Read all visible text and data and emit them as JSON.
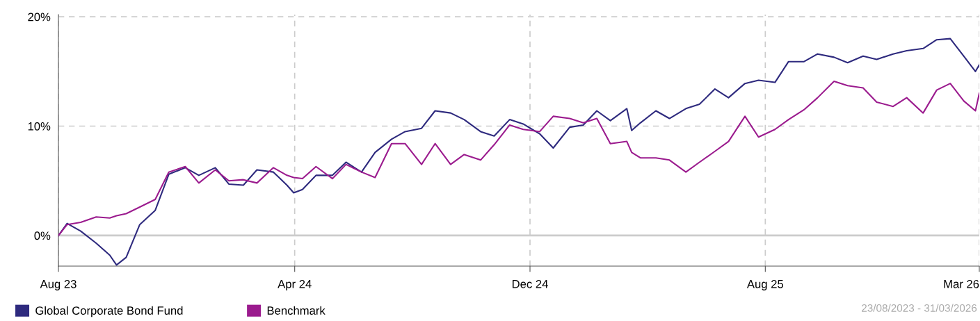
{
  "chart_data": {
    "type": "line",
    "x": [
      "2023-08-23",
      "2023-09-01",
      "2023-09-15",
      "2023-10-01",
      "2023-10-15",
      "2023-10-22",
      "2023-11-01",
      "2023-11-15",
      "2023-12-01",
      "2023-12-15",
      "2024-01-01",
      "2024-01-15",
      "2024-02-01",
      "2024-02-15",
      "2024-03-01",
      "2024-03-15",
      "2024-04-01",
      "2024-04-15",
      "2024-04-22",
      "2024-05-01",
      "2024-05-15",
      "2024-06-01",
      "2024-06-15",
      "2024-07-01",
      "2024-07-15",
      "2024-08-01",
      "2024-08-15",
      "2024-09-01",
      "2024-09-15",
      "2024-10-01",
      "2024-10-15",
      "2024-11-01",
      "2024-11-15",
      "2024-12-01",
      "2024-12-15",
      "2025-01-01",
      "2025-01-15",
      "2025-02-01",
      "2025-02-15",
      "2025-03-01",
      "2025-03-15",
      "2025-04-01",
      "2025-04-06",
      "2025-04-15",
      "2025-05-01",
      "2025-05-15",
      "2025-06-01",
      "2025-06-15",
      "2025-07-01",
      "2025-07-15",
      "2025-08-01",
      "2025-08-15",
      "2025-09-01",
      "2025-09-15",
      "2025-10-01",
      "2025-10-15",
      "2025-11-01",
      "2025-11-15",
      "2025-12-01",
      "2025-12-15",
      "2026-01-01",
      "2026-01-15",
      "2026-02-01",
      "2026-02-15",
      "2026-03-01",
      "2026-03-15",
      "2026-03-27",
      "2026-03-31"
    ],
    "series": [
      {
        "name": "Global Corporate Bond Fund",
        "color": "#2e2a7e",
        "values": [
          0,
          1.1,
          0.4,
          -0.7,
          -1.8,
          -2.7,
          -2.0,
          1.0,
          2.3,
          5.6,
          6.2,
          5.5,
          6.2,
          4.7,
          4.6,
          6.0,
          5.8,
          4.6,
          3.9,
          4.2,
          5.5,
          5.5,
          6.7,
          5.8,
          7.6,
          8.8,
          9.5,
          9.8,
          11.4,
          11.2,
          10.6,
          9.5,
          9.1,
          10.6,
          10.2,
          9.3,
          8.0,
          9.9,
          10.1,
          11.4,
          10.5,
          11.6,
          9.6,
          10.3,
          11.4,
          10.7,
          11.6,
          12.0,
          13.4,
          12.6,
          13.9,
          14.2,
          14.0,
          15.9,
          15.9,
          16.6,
          16.3,
          15.8,
          16.4,
          16.1,
          16.6,
          16.9,
          17.1,
          17.9,
          18.0,
          16.4,
          15.0,
          15.6
        ]
      },
      {
        "name": "Benchmark",
        "color": "#9b1b8e",
        "values": [
          0,
          1.0,
          1.2,
          1.7,
          1.6,
          1.8,
          2.0,
          2.6,
          3.3,
          5.8,
          6.3,
          4.8,
          6.0,
          5.0,
          5.1,
          4.8,
          6.2,
          5.5,
          5.3,
          5.2,
          6.3,
          5.2,
          6.5,
          5.8,
          5.3,
          8.4,
          8.4,
          6.5,
          8.4,
          6.5,
          7.4,
          6.9,
          8.3,
          10.1,
          9.7,
          9.5,
          10.9,
          10.7,
          10.3,
          10.7,
          8.4,
          8.6,
          7.6,
          7.1,
          7.1,
          6.9,
          5.8,
          6.7,
          7.7,
          8.6,
          10.9,
          9.0,
          9.7,
          10.6,
          11.5,
          12.6,
          14.1,
          13.7,
          13.5,
          12.2,
          11.8,
          12.6,
          11.2,
          13.3,
          13.9,
          12.3,
          11.4,
          13.0
        ]
      }
    ],
    "xlim": [
      "2023-08-23",
      "2026-03-31"
    ],
    "xticks": [
      {
        "value": "2023-08-23",
        "label": "Aug 23"
      },
      {
        "value": "2024-04-23",
        "label": "Apr 24"
      },
      {
        "value": "2024-12-22",
        "label": "Dec 24"
      },
      {
        "value": "2025-08-22",
        "label": "Aug 25"
      },
      {
        "value": "2026-03-31",
        "label": "Mar 26"
      }
    ],
    "ylim": [
      -2.8,
      20.2
    ],
    "yticks": [
      {
        "value": 0,
        "label": "0%"
      },
      {
        "value": 10,
        "label": "10%"
      },
      {
        "value": 20,
        "label": "20%"
      }
    ],
    "grid": true,
    "ref_lines": [
      {
        "axis": "y",
        "value": 0,
        "label": null,
        "color": "#cccccc",
        "line_style": "solid"
      }
    ],
    "legend": "bottom left",
    "annotations": [
      "23/08/2023 - 31/03/2026"
    ]
  }
}
